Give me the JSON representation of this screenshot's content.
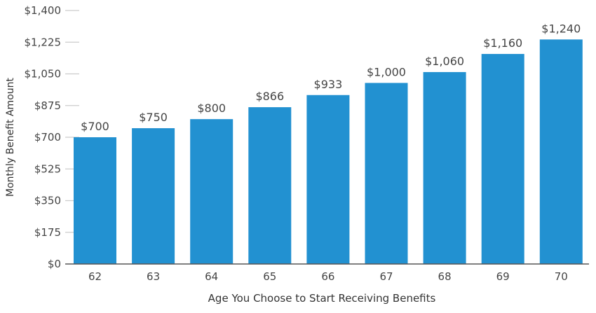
{
  "chart_data": {
    "type": "bar",
    "title": "",
    "xlabel": "Age You Choose to Start Receiving Benefits",
    "ylabel": "Monthly Benefit Amount",
    "categories": [
      "62",
      "63",
      "64",
      "65",
      "66",
      "67",
      "68",
      "69",
      "70"
    ],
    "values": [
      700,
      750,
      800,
      866,
      933,
      1000,
      1060,
      1160,
      1240
    ],
    "data_labels": [
      "$700",
      "$750",
      "$800",
      "$866",
      "$933",
      "$1,000",
      "$1,060",
      "$1,160",
      "$1,240"
    ],
    "ylim": [
      0,
      1400
    ],
    "yticks": [
      0,
      175,
      350,
      525,
      700,
      875,
      1050,
      1225,
      1400
    ],
    "ytick_labels": [
      "$0",
      "$175",
      "$350",
      "$525",
      "$700",
      "$875",
      "$1,050",
      "$1,225",
      "$1,400"
    ],
    "grid": false,
    "legend": "none",
    "bar_color": "#2291d1"
  }
}
